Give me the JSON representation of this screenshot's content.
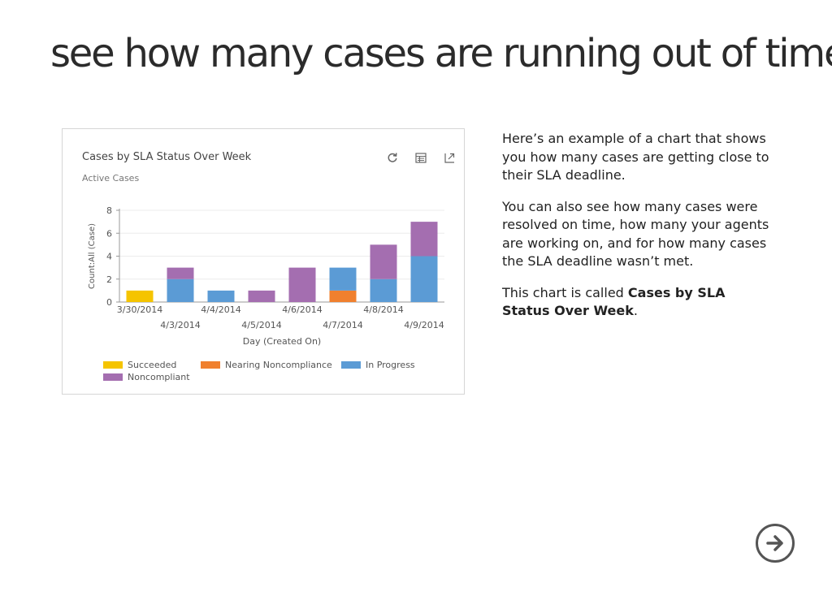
{
  "page": {
    "title": "see how many cases are running out of time"
  },
  "chart_card": {
    "title": "Cases by SLA Status Over Week",
    "subtitle": "Active Cases",
    "icons": [
      "refresh-icon",
      "view-records-icon",
      "expand-icon"
    ]
  },
  "chart_data": {
    "type": "bar",
    "stacked": true,
    "categories": [
      "3/30/2014",
      "4/3/2014",
      "4/4/2014",
      "4/5/2014",
      "4/6/2014",
      "4/7/2014",
      "4/8/2014",
      "4/9/2014"
    ],
    "series": [
      {
        "name": "Succeeded",
        "color": "#f5c400",
        "values": [
          1,
          0,
          0,
          0,
          0,
          0,
          0,
          0
        ]
      },
      {
        "name": "Nearing Noncompliance",
        "color": "#f0802e",
        "values": [
          0,
          0,
          0,
          0,
          0,
          1,
          0,
          0
        ]
      },
      {
        "name": "In Progress",
        "color": "#5b9bd5",
        "values": [
          0,
          2,
          1,
          0,
          0,
          2,
          2,
          4
        ]
      },
      {
        "name": "Noncompliant",
        "color": "#a46eb0",
        "values": [
          0,
          1,
          0,
          1,
          3,
          0,
          3,
          3
        ]
      }
    ],
    "xlabel": "Day (Created On)",
    "ylabel": "Count:All (Case)",
    "ylim": [
      0,
      8
    ],
    "yticks": [
      0,
      2,
      4,
      6,
      8
    ],
    "grid": true,
    "legend_position": "bottom"
  },
  "description": {
    "para1": "Here’s an example of a chart that shows you how many cases are getting close to their SLA deadline.",
    "para2": "You can also see how many cases were resolved on time, how many your agents are working on, and for how many cases the SLA deadline wasn’t met.",
    "para3_prefix": "This chart is called ",
    "para3_bold": "Cases by SLA Status Over Week",
    "para3_suffix": "."
  },
  "navigation": {
    "next_icon": "arrow-right-circle-icon"
  }
}
